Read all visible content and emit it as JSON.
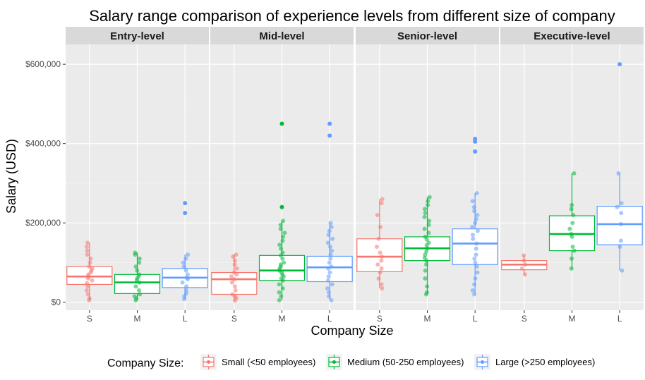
{
  "chart_data": {
    "type": "boxplot",
    "title": "Salary range comparison of experience levels from different size of company",
    "xlabel": "Company Size",
    "ylabel": "Salary (USD)",
    "ylim": [
      -20000,
      650000
    ],
    "y_ticks": [
      {
        "value": 0,
        "label": "$0"
      },
      {
        "value": 200000,
        "label": "$200,000"
      },
      {
        "value": 400000,
        "label": "$400,000"
      },
      {
        "value": 600000,
        "label": "$600,000"
      }
    ],
    "categories": [
      "S",
      "M",
      "L"
    ],
    "grid": true,
    "legend_position": "bottom",
    "legend": {
      "title": "Company Size:",
      "entries": [
        {
          "key": "S",
          "label": "Small (<50 employees)",
          "color": "#F8766D"
        },
        {
          "key": "M",
          "label": "Medium (50-250 employees)",
          "color": "#00BA38"
        },
        {
          "key": "L",
          "label": "Large (>250 employees)",
          "color": "#619CFF"
        }
      ]
    },
    "panels": [
      {
        "name": "Entry-level",
        "groups": [
          {
            "key": "S",
            "min": 5000,
            "q1": 45000,
            "median": 65000,
            "q3": 90000,
            "max": 150000,
            "outliers": [],
            "points": [
              5000,
              10000,
              20000,
              30000,
              40000,
              48000,
              55000,
              60000,
              65000,
              70000,
              75000,
              80000,
              85000,
              90000,
              100000,
              110000,
              120000,
              130000,
              140000,
              150000
            ]
          },
          {
            "key": "M",
            "min": 5000,
            "q1": 22000,
            "median": 50000,
            "q3": 70000,
            "max": 125000,
            "outliers": [],
            "points": [
              5000,
              10000,
              15000,
              20000,
              30000,
              40000,
              50000,
              55000,
              60000,
              65000,
              70000,
              80000,
              90000,
              100000,
              110000,
              120000,
              125000
            ]
          },
          {
            "key": "L",
            "min": 8000,
            "q1": 37000,
            "median": 62000,
            "q3": 85000,
            "max": 120000,
            "outliers": [
              225000,
              250000
            ],
            "points": [
              8000,
              15000,
              22000,
              30000,
              40000,
              50000,
              58000,
              62000,
              70000,
              80000,
              90000,
              100000,
              110000,
              120000
            ]
          }
        ]
      },
      {
        "name": "Mid-level",
        "groups": [
          {
            "key": "S",
            "min": 4000,
            "q1": 20000,
            "median": 58000,
            "q3": 75000,
            "max": 120000,
            "outliers": [],
            "points": [
              4000,
              10000,
              15000,
              20000,
              30000,
              40000,
              50000,
              58000,
              65000,
              70000,
              75000,
              85000,
              95000,
              105000,
              115000,
              120000
            ]
          },
          {
            "key": "M",
            "min": 5000,
            "q1": 55000,
            "median": 80000,
            "q3": 118000,
            "max": 205000,
            "outliers": [
              240000,
              450000
            ],
            "points": [
              5000,
              15000,
              25000,
              35000,
              45000,
              55000,
              60000,
              65000,
              70000,
              75000,
              80000,
              85000,
              90000,
              95000,
              100000,
              110000,
              118000,
              125000,
              135000,
              145000,
              155000,
              165000,
              175000,
              185000,
              195000,
              205000
            ]
          },
          {
            "key": "L",
            "min": 5000,
            "q1": 52000,
            "median": 88000,
            "q3": 116000,
            "max": 200000,
            "outliers": [
              420000,
              450000
            ],
            "points": [
              5000,
              15000,
              25000,
              35000,
              45000,
              55000,
              65000,
              75000,
              85000,
              90000,
              100000,
              110000,
              120000,
              130000,
              140000,
              150000,
              160000,
              170000,
              180000,
              190000,
              200000
            ]
          }
        ]
      },
      {
        "name": "Senior-level",
        "groups": [
          {
            "key": "S",
            "min": 35000,
            "q1": 77000,
            "median": 115000,
            "q3": 160000,
            "max": 260000,
            "outliers": [],
            "points": [
              35000,
              45000,
              60000,
              75000,
              85000,
              95000,
              105000,
              115000,
              125000,
              140000,
              160000,
              190000,
              220000,
              250000,
              260000
            ]
          },
          {
            "key": "M",
            "min": 20000,
            "q1": 105000,
            "median": 136000,
            "q3": 165000,
            "max": 265000,
            "outliers": [],
            "points": [
              20000,
              25000,
              40000,
              60000,
              80000,
              95000,
              105000,
              112000,
              120000,
              128000,
              136000,
              144000,
              150000,
              158000,
              165000,
              175000,
              185000,
              195000,
              205000,
              215000,
              225000,
              235000,
              245000,
              255000,
              265000
            ]
          },
          {
            "key": "L",
            "min": 20000,
            "q1": 95000,
            "median": 148000,
            "q3": 185000,
            "max": 275000,
            "outliers": [
              380000,
              405000,
              412000
            ],
            "points": [
              20000,
              30000,
              45000,
              60000,
              75000,
              90000,
              100000,
              110000,
              120000,
              135000,
              148000,
              160000,
              170000,
              180000,
              190000,
              200000,
              210000,
              220000,
              230000,
              240000,
              255000,
              275000
            ]
          }
        ]
      },
      {
        "name": "Executive-level",
        "groups": [
          {
            "key": "S",
            "min": 70000,
            "q1": 82000,
            "median": 95000,
            "q3": 105000,
            "max": 118000,
            "outliers": [],
            "points": [
              70000,
              85000,
              95000,
              105000,
              118000
            ]
          },
          {
            "key": "M",
            "min": 85000,
            "q1": 130000,
            "median": 172000,
            "q3": 218000,
            "max": 325000,
            "outliers": [],
            "points": [
              85000,
              110000,
              130000,
              140000,
              165000,
              172000,
              185000,
              200000,
              220000,
              235000,
              245000,
              325000
            ]
          },
          {
            "key": "L",
            "min": 80000,
            "q1": 145000,
            "median": 197000,
            "q3": 242000,
            "max": 325000,
            "outliers": [
              600000
            ],
            "points": [
              80000,
              140000,
              155000,
              197000,
              225000,
              240000,
              250000,
              325000
            ]
          }
        ]
      }
    ]
  }
}
